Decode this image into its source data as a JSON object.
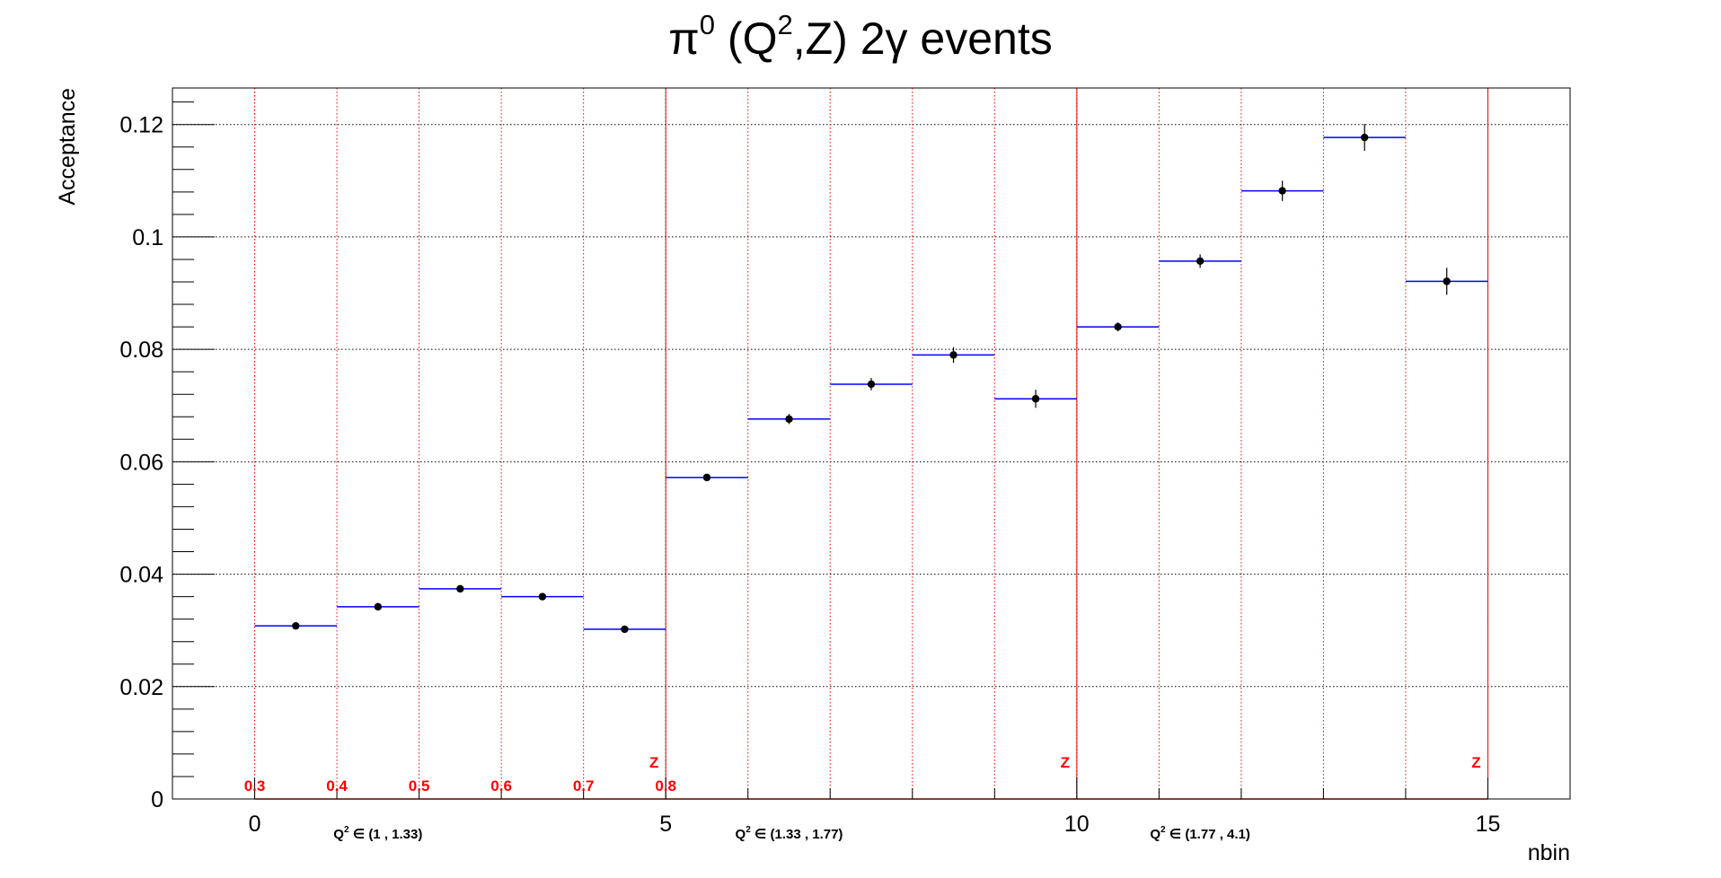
{
  "chart_data": {
    "type": "scatter",
    "title": {
      "pi": "π",
      "pi_sup": "0",
      "open": "  (Q",
      "q_sup": "2",
      "rest": ",Z) 2γ events"
    },
    "xlabel": "nbin",
    "ylabel": "Acceptance",
    "xlim": [
      -1,
      16
    ],
    "ylim": [
      0,
      0.1265
    ],
    "grid": true,
    "x_ticks": [
      0,
      5,
      10,
      15
    ],
    "x_tick_labels": [
      "0",
      "5",
      "10",
      "15"
    ],
    "y_ticks": [
      0,
      0.02,
      0.04,
      0.06,
      0.08,
      0.1,
      0.12
    ],
    "y_tick_labels": [
      "0",
      "0.02",
      "0.04",
      "0.06",
      "0.08",
      "0.1",
      "0.12"
    ],
    "bin_edges": [
      0,
      1,
      2,
      3,
      4,
      5,
      6,
      7,
      8,
      9,
      10,
      11,
      12,
      13,
      14,
      15
    ],
    "x": [
      0.5,
      1.5,
      2.5,
      3.5,
      4.5,
      5.5,
      6.5,
      7.5,
      8.5,
      9.5,
      10.5,
      11.5,
      12.5,
      13.5,
      14.5
    ],
    "values": [
      0.0308,
      0.0342,
      0.0374,
      0.036,
      0.0302,
      0.0572,
      0.0676,
      0.0738,
      0.079,
      0.0712,
      0.084,
      0.0957,
      0.1082,
      0.1177,
      0.0921
    ],
    "errors": [
      0.0004,
      0.0005,
      0.0005,
      0.0006,
      0.0006,
      0.0006,
      0.0009,
      0.0011,
      0.0014,
      0.0016,
      0.0008,
      0.0012,
      0.0018,
      0.0024,
      0.0024
    ],
    "z_bin_labels": [
      {
        "x": 0,
        "text": "0.3"
      },
      {
        "x": 1,
        "text": "0.4"
      },
      {
        "x": 2,
        "text": "0.5"
      },
      {
        "x": 3,
        "text": "0.6"
      },
      {
        "x": 4,
        "text": "0.7"
      },
      {
        "x": 5,
        "text": "0.8"
      }
    ],
    "z_markers": [
      {
        "x": 5,
        "text": "Z"
      },
      {
        "x": 10,
        "text": "Z"
      },
      {
        "x": 15,
        "text": "Z"
      }
    ],
    "q2_ranges": [
      {
        "x": 1.5,
        "prefix": "Q",
        "sup": "2",
        "text": " ∈ (1 , 1.33)"
      },
      {
        "x": 6.5,
        "prefix": "Q",
        "sup": "2",
        "text": " ∈ (1.33 , 1.77)"
      },
      {
        "x": 11.5,
        "prefix": "Q",
        "sup": "2",
        "text": " ∈ (1.77 , 4.1)"
      }
    ],
    "colors": {
      "hist": "#0000ff",
      "points": "#000000",
      "annotation": "#ff0000",
      "grid": "#000000",
      "bin_grid": "#ff0000"
    }
  }
}
